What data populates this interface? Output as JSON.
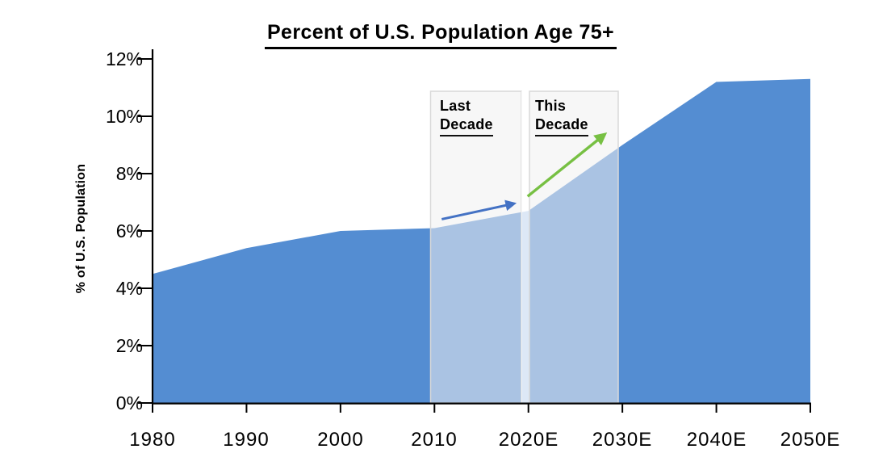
{
  "title": "Percent of U.S. Population Age 75+",
  "y_axis_title": "% of U.S. Population",
  "annotations": {
    "last_decade": {
      "line1": "Last",
      "line2": "Decade"
    },
    "this_decade": {
      "line1": "This",
      "line2": "Decade"
    }
  },
  "colors": {
    "area": "#548DD2",
    "area-highlighted": "#A3BFE4",
    "axis": "#000000",
    "box-fill": "rgba(240,240,240,0.55)",
    "box-border": "#D9D9D9",
    "box-gap": "rgba(255,255,255,0.8)",
    "arrow-blue": "#4472C4",
    "arrow-green": "#77C043"
  },
  "chart_data": {
    "type": "area",
    "title": "Percent of U.S. Population Age 75+",
    "xlabel": "",
    "ylabel": "% of U.S. Population",
    "categories": [
      "1980",
      "1990",
      "2000",
      "2010",
      "2020E",
      "2030E",
      "2040E",
      "2050E"
    ],
    "values": [
      4.5,
      5.4,
      6.0,
      6.1,
      6.7,
      9.0,
      11.2,
      11.3
    ],
    "ylim": [
      0,
      12
    ],
    "yticks": [
      "0%",
      "2%",
      "4%",
      "6%",
      "8%",
      "10%",
      "12%"
    ],
    "grid": false,
    "legend": "none",
    "highlight_bands": [
      {
        "label": "Last Decade",
        "from": "2010",
        "to": "2020E",
        "arrow_color": "#4472C4"
      },
      {
        "label": "This Decade",
        "from": "2020E",
        "to": "2030E",
        "arrow_color": "#77C043"
      }
    ]
  }
}
